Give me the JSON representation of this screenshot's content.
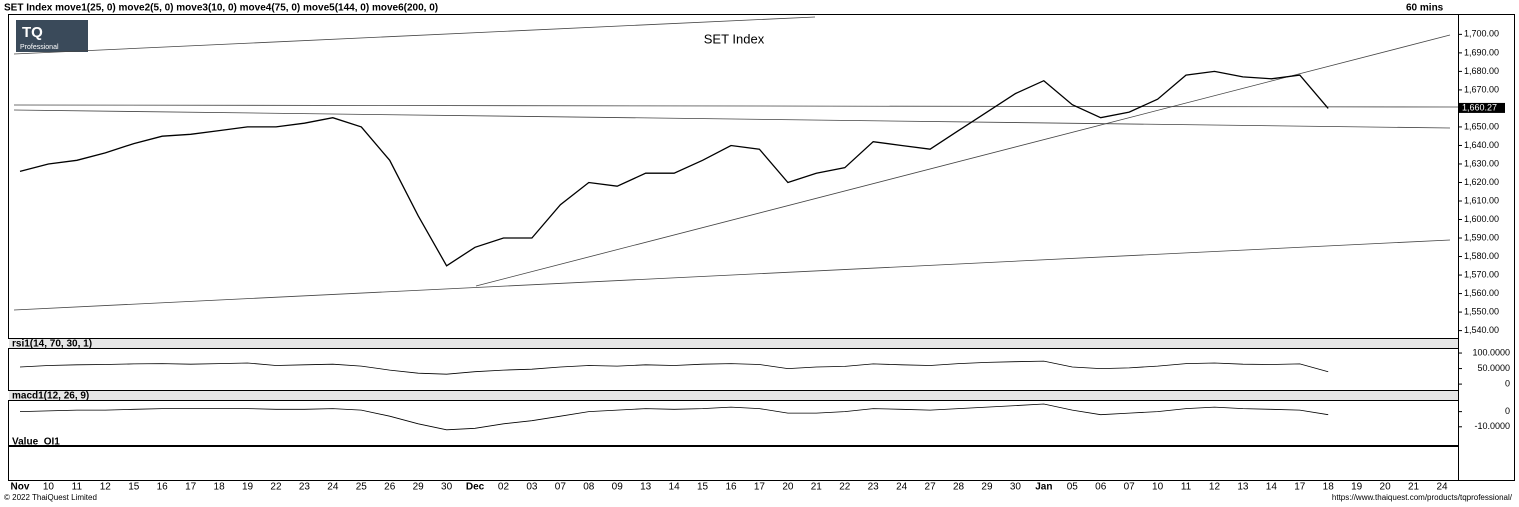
{
  "header": {
    "indicators": "SET Index move1(25, 0) move2(5, 0) move3(10, 0) move4(75, 0) move5(144, 0) move6(200, 0)",
    "interval": "60 mins"
  },
  "logo": {
    "text": "TQ",
    "sub": "Professional"
  },
  "chart_data": {
    "type": "line",
    "title": "SET Index",
    "categories": [
      "Nov",
      "10",
      "11",
      "12",
      "15",
      "16",
      "17",
      "18",
      "19",
      "22",
      "23",
      "24",
      "25",
      "26",
      "29",
      "30",
      "Dec",
      "02",
      "03",
      "07",
      "08",
      "09",
      "13",
      "14",
      "15",
      "16",
      "17",
      "20",
      "21",
      "22",
      "23",
      "24",
      "27",
      "28",
      "29",
      "30",
      "Jan",
      "05",
      "06",
      "07",
      "10",
      "11",
      "12",
      "13",
      "14",
      "17",
      "18",
      "19",
      "20",
      "21",
      "24"
    ],
    "values": [
      1626,
      1630,
      1632,
      1636,
      1641,
      1645,
      1646,
      1648,
      1650,
      1650,
      1652,
      1655,
      1650,
      1632,
      1602,
      1575,
      1585,
      1590,
      1590,
      1608,
      1620,
      1618,
      1625,
      1625,
      1632,
      1640,
      1638,
      1620,
      1625,
      1628,
      1642,
      1640,
      1638,
      1648,
      1658,
      1668,
      1675,
      1662,
      1655,
      1658,
      1665,
      1678,
      1680,
      1677,
      1676,
      1678,
      1660,
      null,
      null,
      null,
      null
    ],
    "color": "#000000",
    "last_value": {
      "value": 1660.27,
      "label": "1,660.27"
    },
    "ylim": [
      1536,
      1711
    ],
    "yticks": [
      {
        "value": 1540,
        "label": "1,540.00"
      },
      {
        "value": 1550,
        "label": "1,550.00"
      },
      {
        "value": 1560,
        "label": "1,560.00"
      },
      {
        "value": 1570,
        "label": "1,570.00"
      },
      {
        "value": 1580,
        "label": "1,580.00"
      },
      {
        "value": 1590,
        "label": "1,590.00"
      },
      {
        "value": 1600,
        "label": "1,600.00"
      },
      {
        "value": 1610,
        "label": "1,610.00"
      },
      {
        "value": 1620,
        "label": "1,620.00"
      },
      {
        "value": 1630,
        "label": "1,630.00"
      },
      {
        "value": 1640,
        "label": "1,640.00"
      },
      {
        "value": 1650,
        "label": "1,650.00"
      },
      {
        "value": 1660,
        "label": "1,660.00"
      },
      {
        "value": 1670,
        "label": "1,670.00"
      },
      {
        "value": 1680,
        "label": "1,680.00"
      },
      {
        "value": 1690,
        "label": "1,690.00"
      },
      {
        "value": 1700,
        "label": "1,700.00"
      }
    ]
  },
  "rsi": {
    "label": "rsi1(14, 70, 30, 1)",
    "ylim": [
      -19,
      113
    ],
    "yticks": [
      {
        "value": 100,
        "label": "100.0000"
      },
      {
        "value": 50,
        "label": "50.0000"
      },
      0
    ],
    "values": [
      55,
      60,
      62,
      63,
      65,
      66,
      64,
      66,
      68,
      60,
      62,
      64,
      58,
      45,
      35,
      32,
      40,
      45,
      48,
      55,
      60,
      58,
      62,
      60,
      64,
      66,
      63,
      50,
      55,
      57,
      65,
      62,
      60,
      66,
      70,
      72,
      74,
      55,
      50,
      52,
      58,
      66,
      68,
      64,
      63,
      65,
      40,
      null,
      null,
      null,
      null
    ]
  },
  "macd": {
    "label": "macd1(12, 26, 9)",
    "ylim": [
      -22,
      7
    ],
    "yticks": [
      0,
      {
        "value": -10,
        "label": "-10.0000"
      }
    ],
    "values": [
      0,
      0.5,
      1,
      1,
      1.5,
      2,
      2,
      2,
      2,
      1.5,
      1.5,
      2,
      1,
      -3,
      -8,
      -12,
      -11,
      -8,
      -6,
      -3,
      0,
      1,
      2,
      1.5,
      2,
      3,
      2,
      -1,
      -1,
      0,
      2,
      1.5,
      1,
      2,
      3,
      4,
      5,
      1,
      -2,
      -1,
      0,
      2,
      3,
      2,
      1.5,
      1,
      -2,
      null,
      null,
      null,
      null
    ]
  },
  "oi": {
    "label": "Value_OI1"
  },
  "footer": {
    "copyright": "© 2022 ThaiQuest Limited",
    "url": "https://www.thaiquest.com/products/tqprofessional/"
  }
}
